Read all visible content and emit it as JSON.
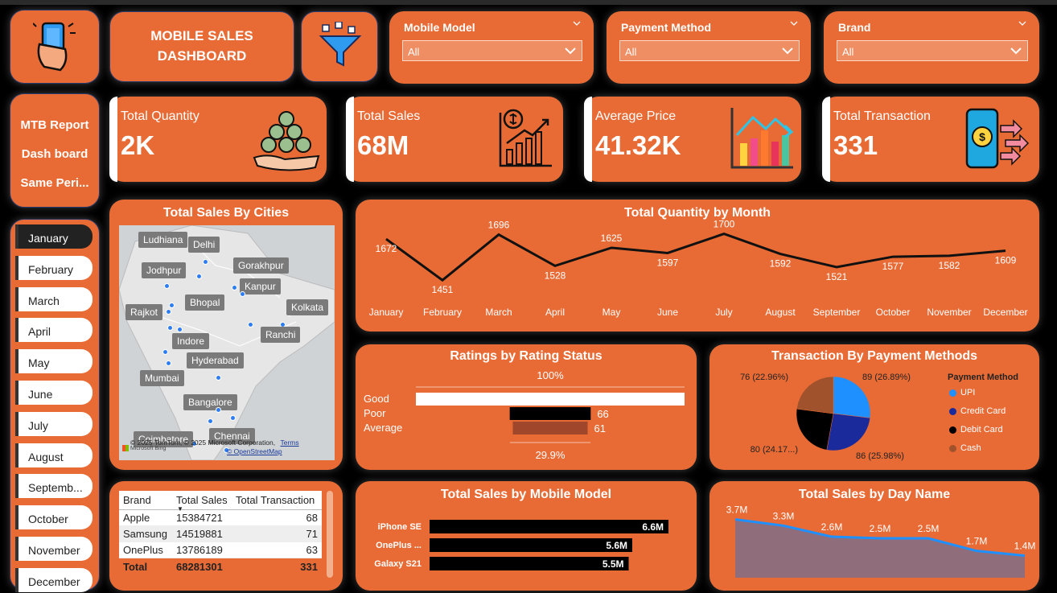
{
  "header": {
    "title_line1": "MOBILE SALES",
    "title_line2": "DASHBOARD"
  },
  "slicers": [
    {
      "label": "Mobile Model",
      "value": "All"
    },
    {
      "label": "Payment Method",
      "value": "All"
    },
    {
      "label": "Brand",
      "value": "All"
    }
  ],
  "nav": {
    "items": [
      "MTB Report",
      "Dash board",
      "Same Peri..."
    ]
  },
  "kpis": [
    {
      "label": "Total Quantity",
      "value": "2K"
    },
    {
      "label": "Total Sales",
      "value": "68M"
    },
    {
      "label": "Average Price",
      "value": "41.32K"
    },
    {
      "label": "Total Transaction",
      "value": "331"
    }
  ],
  "months": [
    "January",
    "February",
    "March",
    "April",
    "May",
    "June",
    "July",
    "August",
    "Septemb...",
    "October",
    "November",
    "December"
  ],
  "selected_month": "January",
  "map": {
    "title": "Total Sales By Cities",
    "cities": [
      "Ludhiana",
      "Delhi",
      "Jodhpur",
      "Gorakhpur",
      "Kanpur",
      "Bhopal",
      "Rajkot",
      "Kolkata",
      "Indore",
      "Ranchi",
      "Hyderabad",
      "Mumbai",
      "Bangalore",
      "Coimbatore",
      "Chennai"
    ],
    "attribution": "© 2025 TomTom, © 2025 Microsoft Corporation,",
    "terms": "Terms",
    "osm": "© OpenStreetMap",
    "bing": "Microsoft Bing"
  },
  "table": {
    "headers": [
      "Brand",
      "Total Sales",
      "Total Transaction"
    ],
    "rows": [
      [
        "Apple",
        "15384721",
        "68"
      ],
      [
        "Samsung",
        "14519881",
        "71"
      ],
      [
        "OnePlus",
        "13786189",
        "63"
      ]
    ],
    "total": [
      "Total",
      "68281301",
      "331"
    ]
  },
  "colors": {
    "accent": "#E86B35",
    "blue": "#1E90FF",
    "navy": "#1a2a9a"
  },
  "chart_data": [
    {
      "type": "line",
      "title": "Total Quantity by Month",
      "categories": [
        "January",
        "February",
        "March",
        "April",
        "May",
        "June",
        "July",
        "August",
        "September",
        "October",
        "November",
        "December"
      ],
      "values": [
        1672,
        1451,
        1696,
        1528,
        1625,
        1597,
        1700,
        1592,
        1521,
        1577,
        1582,
        1609
      ],
      "ylim": [
        1400,
        1720
      ]
    },
    {
      "type": "bar",
      "title": "Ratings by Rating Status",
      "categories": [
        "Good",
        "Poor",
        "Average"
      ],
      "values": [
        219,
        66,
        61
      ],
      "top_label": "100%",
      "bottom_label": "29.9%"
    },
    {
      "type": "pie",
      "title": "Transaction By Payment Methods",
      "legend_title": "Payment Method",
      "categories": [
        "UPI",
        "Credit Card",
        "Debit Card",
        "Cash"
      ],
      "values": [
        89,
        86,
        80,
        76
      ],
      "labels": [
        "89 (26.89%)",
        "86 (25.98%)",
        "80 (24.17...)",
        "76 (22.96%)"
      ],
      "colors": [
        "#1E90FF",
        "#1a2a9a",
        "#000000",
        "#A0522D"
      ]
    },
    {
      "type": "bar",
      "title": "Total Sales by Mobile Model",
      "categories": [
        "iPhone SE",
        "OnePlus ...",
        "Galaxy S21"
      ],
      "values": [
        6.6,
        5.6,
        5.5
      ],
      "labels": [
        "6.6M",
        "5.6M",
        "5.5M"
      ],
      "xlim": [
        0,
        7.2
      ]
    },
    {
      "type": "area",
      "title": "Total Sales by Day Name",
      "values": [
        3.7,
        3.3,
        2.6,
        2.5,
        2.5,
        1.7,
        1.4
      ],
      "labels": [
        "3.7M",
        "3.3M",
        "2.6M",
        "2.5M",
        "2.5M",
        "1.7M",
        "1.4M"
      ],
      "ylim": [
        0,
        4.5
      ]
    }
  ]
}
